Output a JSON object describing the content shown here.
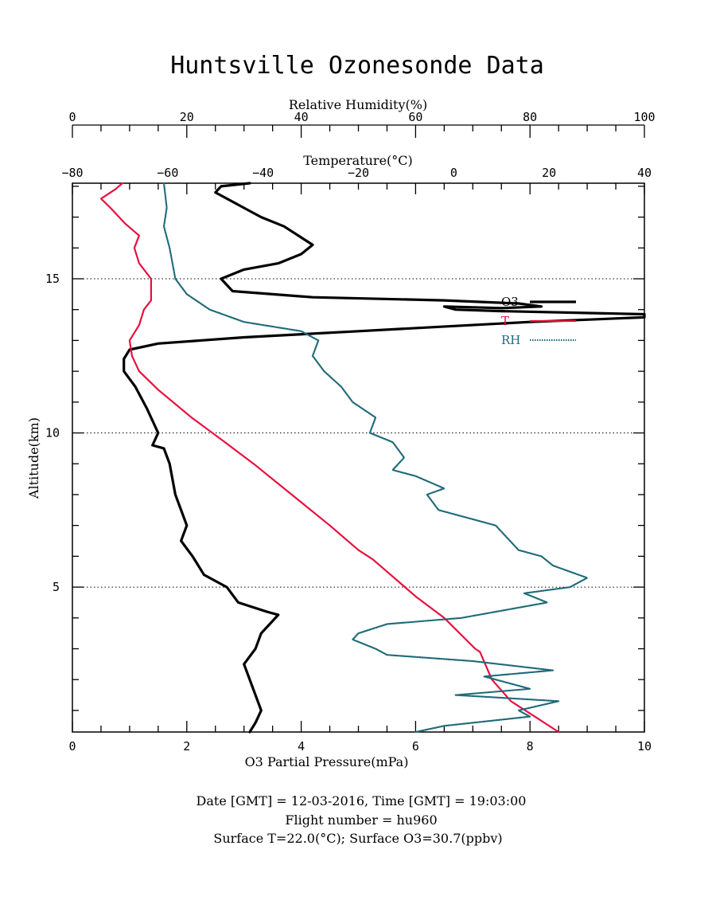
{
  "title": "Huntsville Ozonesonde Data",
  "footer": {
    "line1": "Date [GMT] = 12-03-2016,  Time [GMT] = 19:03:00",
    "line2": "Flight number = hu960",
    "line3": "Surface T=22.0(°C); Surface O3=30.7(ppbv)"
  },
  "colors": {
    "o3": "#000000",
    "t": "#e8103e",
    "rh": "#1f6b78"
  },
  "chart_data": {
    "type": "line",
    "title": "Huntsville Ozonesonde Data",
    "axes": {
      "y": {
        "label": "Altitude(km)",
        "range": [
          0.3,
          18.1
        ],
        "ticks": [
          5,
          10,
          15
        ],
        "gridlines": [
          5,
          10,
          15
        ]
      },
      "x_bottom": {
        "label": "O3 Partial Pressure(mPa)",
        "range": [
          0,
          10
        ],
        "ticks": [
          0,
          2,
          4,
          6,
          8,
          10
        ]
      },
      "x_top_temperature": {
        "label": "Temperature(°C)",
        "range": [
          -80,
          40
        ],
        "ticks": [
          -80,
          -60,
          -40,
          -20,
          0,
          20,
          40
        ]
      },
      "x_top_humidity": {
        "label": "Relative Humidity(%)",
        "range": [
          0,
          100
        ],
        "ticks": [
          0,
          20,
          40,
          60,
          80,
          100
        ]
      }
    },
    "legend_placement": "right",
    "series": [
      {
        "name": "O3",
        "axis": "x_bottom",
        "points": [
          [
            3.1,
            0.3
          ],
          [
            3.2,
            0.6
          ],
          [
            3.3,
            1.0
          ],
          [
            3.2,
            1.5
          ],
          [
            3.1,
            2.0
          ],
          [
            3.0,
            2.5
          ],
          [
            3.2,
            3.0
          ],
          [
            3.3,
            3.5
          ],
          [
            3.6,
            4.1
          ],
          [
            3.4,
            4.2
          ],
          [
            2.9,
            4.5
          ],
          [
            2.7,
            5.0
          ],
          [
            2.3,
            5.4
          ],
          [
            2.1,
            6.0
          ],
          [
            1.9,
            6.5
          ],
          [
            2.0,
            7.0
          ],
          [
            1.8,
            8.0
          ],
          [
            1.7,
            9.0
          ],
          [
            1.6,
            9.5
          ],
          [
            1.4,
            9.6
          ],
          [
            1.5,
            10.0
          ],
          [
            1.3,
            10.8
          ],
          [
            1.1,
            11.5
          ],
          [
            0.9,
            12.0
          ],
          [
            0.9,
            12.4
          ],
          [
            1.0,
            12.7
          ],
          [
            1.5,
            12.9
          ],
          [
            3.0,
            13.1
          ],
          [
            5.0,
            13.3
          ],
          [
            8.0,
            13.6
          ],
          [
            10.0,
            13.75
          ],
          [
            10.0,
            13.85
          ],
          [
            7.5,
            13.95
          ],
          [
            6.7,
            14.0
          ],
          [
            6.5,
            14.1
          ],
          [
            7.5,
            14.05
          ],
          [
            8.2,
            14.1
          ],
          [
            7.8,
            14.2
          ],
          [
            6.5,
            14.3
          ],
          [
            4.2,
            14.4
          ],
          [
            2.8,
            14.6
          ],
          [
            2.6,
            15.0
          ],
          [
            3.0,
            15.3
          ],
          [
            3.6,
            15.5
          ],
          [
            4.0,
            15.8
          ],
          [
            4.2,
            16.1
          ],
          [
            3.7,
            16.7
          ],
          [
            3.3,
            17.0
          ],
          [
            2.9,
            17.4
          ],
          [
            2.5,
            17.8
          ],
          [
            2.6,
            18.0
          ],
          [
            3.1,
            18.1
          ]
        ]
      },
      {
        "name": "T",
        "axis": "x_top_temperature",
        "points": [
          [
            22.0,
            0.3
          ],
          [
            17.0,
            0.8
          ],
          [
            12.0,
            1.3
          ],
          [
            8.0,
            2.0
          ],
          [
            5.5,
            2.9
          ],
          [
            4.5,
            3.0
          ],
          [
            -2.0,
            4.0
          ],
          [
            -8.0,
            4.7
          ],
          [
            -14.0,
            5.5
          ],
          [
            -17.0,
            5.9
          ],
          [
            -20.0,
            6.2
          ],
          [
            -26.0,
            7.0
          ],
          [
            -34.0,
            8.0
          ],
          [
            -42.0,
            9.0
          ],
          [
            -48.0,
            9.7
          ],
          [
            -55.0,
            10.5
          ],
          [
            -62.0,
            11.4
          ],
          [
            -66.0,
            12.0
          ],
          [
            -67.5,
            12.5
          ],
          [
            -68.0,
            13.0
          ],
          [
            -66.0,
            13.5
          ],
          [
            -65.0,
            14.0
          ],
          [
            -63.5,
            14.3
          ],
          [
            -63.5,
            15.0
          ],
          [
            -66.0,
            15.5
          ],
          [
            -67.0,
            16.0
          ],
          [
            -66.0,
            16.4
          ],
          [
            -69.0,
            16.8
          ],
          [
            -72.0,
            17.3
          ],
          [
            -74.0,
            17.6
          ],
          [
            -71.0,
            17.9
          ],
          [
            -69.5,
            18.1
          ]
        ]
      },
      {
        "name": "RH",
        "axis": "x_top_humidity",
        "points": [
          [
            60.0,
            0.3
          ],
          [
            65.0,
            0.5
          ],
          [
            80.0,
            0.8
          ],
          [
            78.0,
            1.0
          ],
          [
            85.0,
            1.3
          ],
          [
            67.0,
            1.5
          ],
          [
            80.0,
            1.7
          ],
          [
            72.0,
            2.1
          ],
          [
            84.0,
            2.3
          ],
          [
            70.0,
            2.6
          ],
          [
            55.0,
            2.8
          ],
          [
            53.0,
            3.0
          ],
          [
            49.0,
            3.3
          ],
          [
            50.0,
            3.5
          ],
          [
            55.0,
            3.8
          ],
          [
            68.0,
            4.0
          ],
          [
            83.0,
            4.5
          ],
          [
            79.0,
            4.8
          ],
          [
            87.0,
            5.0
          ],
          [
            90.0,
            5.3
          ],
          [
            84.0,
            5.7
          ],
          [
            82.0,
            6.0
          ],
          [
            78.0,
            6.2
          ],
          [
            76.0,
            6.6
          ],
          [
            74.0,
            7.0
          ],
          [
            70.0,
            7.2
          ],
          [
            64.0,
            7.5
          ],
          [
            62.0,
            8.0
          ],
          [
            65.0,
            8.2
          ],
          [
            60.0,
            8.6
          ],
          [
            56.0,
            8.8
          ],
          [
            58.0,
            9.2
          ],
          [
            56.0,
            9.7
          ],
          [
            52.0,
            10.0
          ],
          [
            53.0,
            10.5
          ],
          [
            49.0,
            11.0
          ],
          [
            47.0,
            11.5
          ],
          [
            44.0,
            12.0
          ],
          [
            42.0,
            12.5
          ],
          [
            43.0,
            13.0
          ],
          [
            40.0,
            13.3
          ],
          [
            30.0,
            13.6
          ],
          [
            24.0,
            14.0
          ],
          [
            20.0,
            14.5
          ],
          [
            18.0,
            15.0
          ],
          [
            17.0,
            16.0
          ],
          [
            16.0,
            16.7
          ],
          [
            16.5,
            17.3
          ],
          [
            16.0,
            18.1
          ]
        ]
      }
    ]
  }
}
